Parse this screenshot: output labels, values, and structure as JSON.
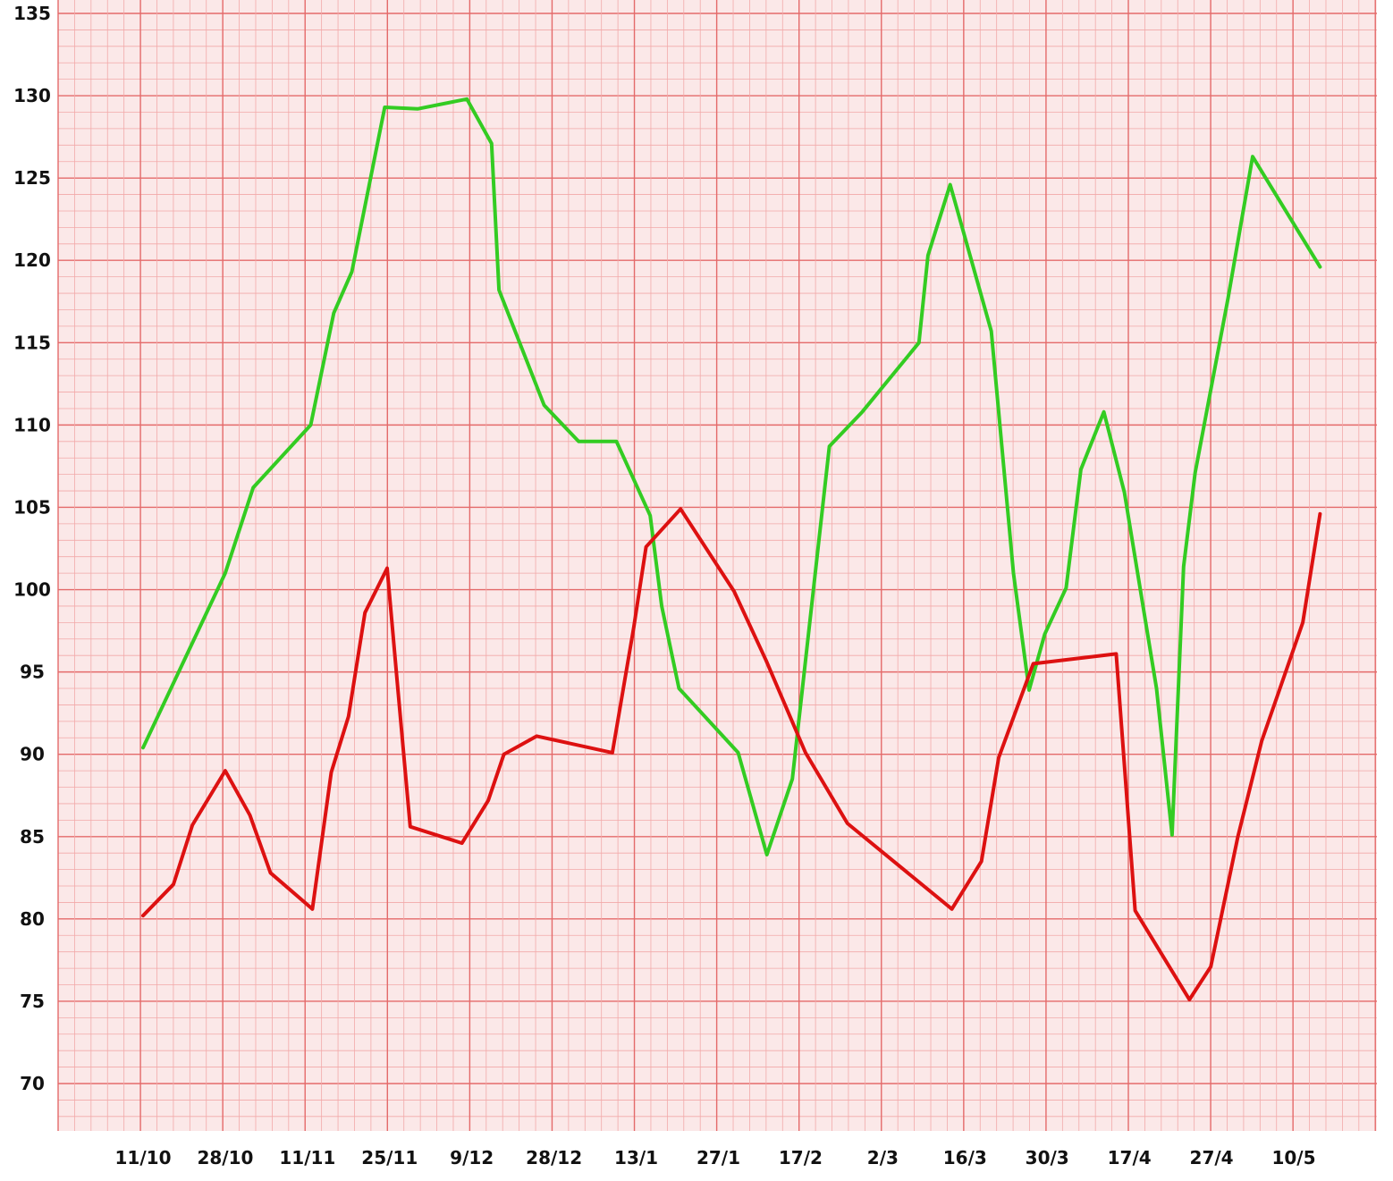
{
  "chart_data": {
    "type": "line",
    "title": "",
    "xlabel": "",
    "ylabel": "",
    "ylim": [
      68,
      135
    ],
    "yticks": [
      135,
      130,
      125,
      120,
      115,
      110,
      105,
      100,
      95,
      90,
      85,
      80,
      75,
      70
    ],
    "xticks": [
      "11/10",
      "28/10",
      "11/11",
      "25/11",
      "9/12",
      "28/12",
      "13/1",
      "27/1",
      "17/2",
      "2/3",
      "16/3",
      "30/3",
      "17/4",
      "27/4",
      "10/5"
    ],
    "grid": true,
    "legend": "none",
    "colors": {
      "paper": "#fbe8e8",
      "grid_minor": "#f2a9a9",
      "grid_major": "#e46a6a"
    },
    "series": [
      {
        "color": "#33cc22",
        "points": [
          [
            0,
            90.4
          ],
          [
            1,
            101
          ],
          [
            1.34,
            106.2
          ],
          [
            2.04,
            110
          ],
          [
            2.32,
            116.8
          ],
          [
            2.54,
            119.3
          ],
          [
            2.94,
            129.3
          ],
          [
            3.34,
            129.2
          ],
          [
            3.94,
            129.8
          ],
          [
            4.24,
            127.1
          ],
          [
            4.33,
            118.2
          ],
          [
            4.88,
            111.2
          ],
          [
            5.3,
            109
          ],
          [
            5.76,
            109
          ],
          [
            6.17,
            104.5
          ],
          [
            6.31,
            99
          ],
          [
            6.52,
            94
          ],
          [
            7.24,
            90.1
          ],
          [
            7.59,
            83.9
          ],
          [
            7.9,
            88.5
          ],
          [
            8.35,
            108.7
          ],
          [
            8.75,
            110.8
          ],
          [
            9.44,
            115
          ],
          [
            9.55,
            120.3
          ],
          [
            9.82,
            124.6
          ],
          [
            10.32,
            115.7
          ],
          [
            10.59,
            101
          ],
          [
            10.78,
            93.9
          ],
          [
            10.97,
            97.3
          ],
          [
            11.23,
            100.1
          ],
          [
            11.41,
            107.3
          ],
          [
            11.69,
            110.8
          ],
          [
            11.94,
            105.9
          ],
          [
            12.33,
            94
          ],
          [
            12.52,
            85.1
          ],
          [
            12.66,
            101.4
          ],
          [
            12.8,
            107.1
          ],
          [
            13.2,
            117.7
          ],
          [
            13.5,
            126.3
          ],
          [
            14.32,
            119.6
          ]
        ]
      },
      {
        "color": "#dd1111",
        "points": [
          [
            0,
            80.2
          ],
          [
            0.37,
            82.1
          ],
          [
            0.6,
            85.7
          ],
          [
            1,
            89
          ],
          [
            1.3,
            86.3
          ],
          [
            1.55,
            82.8
          ],
          [
            2.06,
            80.6
          ],
          [
            2.29,
            88.9
          ],
          [
            2.5,
            92.3
          ],
          [
            2.7,
            98.6
          ],
          [
            2.97,
            101.3
          ],
          [
            3.09,
            94.5
          ],
          [
            3.25,
            85.6
          ],
          [
            3.88,
            84.6
          ],
          [
            4.2,
            87.2
          ],
          [
            4.39,
            90
          ],
          [
            4.79,
            91.1
          ],
          [
            5.71,
            90.1
          ],
          [
            5.97,
            97.7
          ],
          [
            6.12,
            102.6
          ],
          [
            6.54,
            104.9
          ],
          [
            7.19,
            99.9
          ],
          [
            7.58,
            95.7
          ],
          [
            8.06,
            90.1
          ],
          [
            8.57,
            85.8
          ],
          [
            9.84,
            80.6
          ],
          [
            10.2,
            83.5
          ],
          [
            10.41,
            89.8
          ],
          [
            10.83,
            95.5
          ],
          [
            11.84,
            96.1
          ],
          [
            12.07,
            80.5
          ],
          [
            12.73,
            75.1
          ],
          [
            12.99,
            77.1
          ],
          [
            13.32,
            85
          ],
          [
            13.61,
            90.8
          ],
          [
            14.11,
            98
          ],
          [
            14.32,
            104.6
          ]
        ]
      }
    ]
  }
}
